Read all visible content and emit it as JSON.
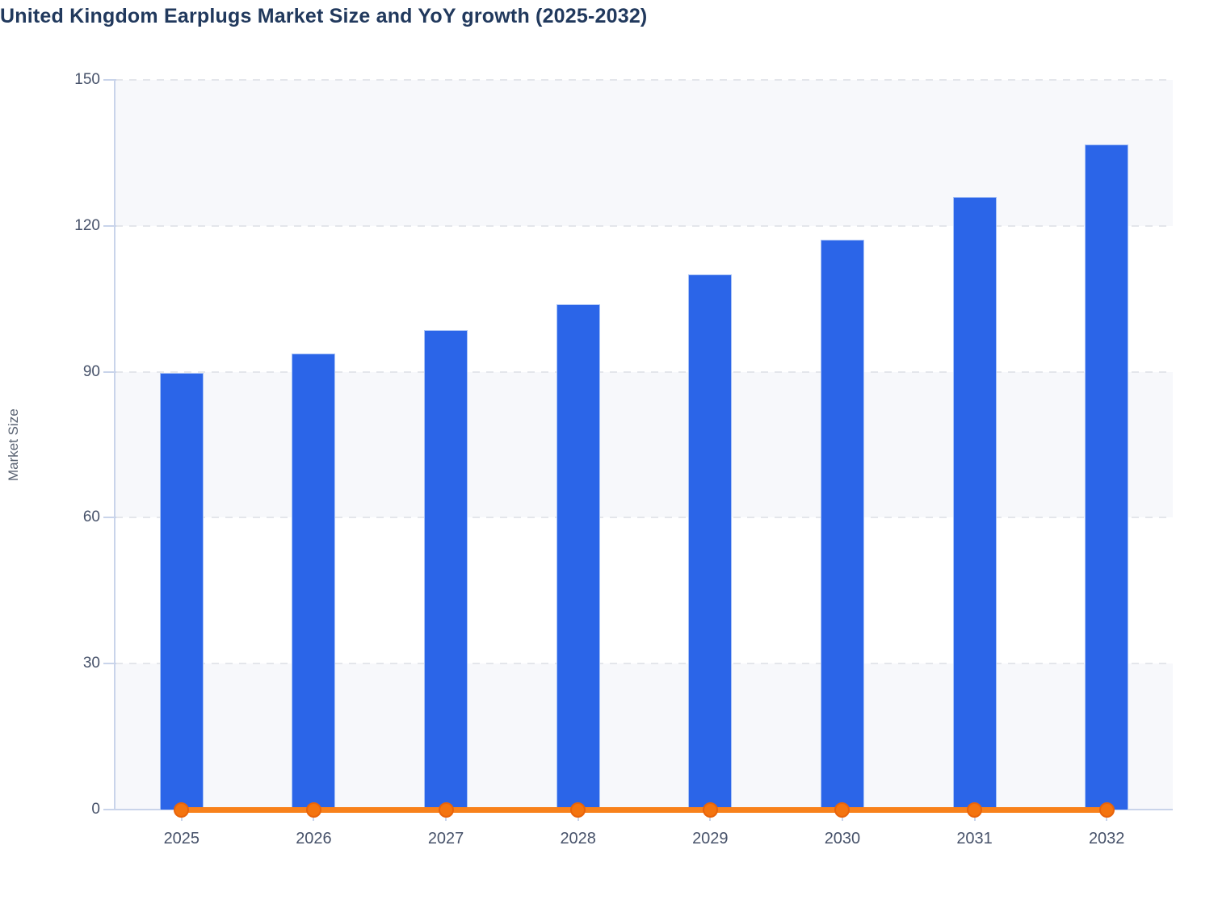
{
  "title": "United Kingdom Earplugs Market Size and YoY growth (2025-2032)",
  "chart_data": {
    "type": "bar",
    "subtype": "bar-plus-line-combo",
    "title": "United Kingdom Earplugs Market Size and YoY growth (2025-2032)",
    "categories": [
      "2025",
      "2026",
      "2027",
      "2028",
      "2029",
      "2030",
      "2031",
      "2032"
    ],
    "series": [
      {
        "name": "Market Size",
        "type": "bar",
        "color": "#2B65E8",
        "values": [
          89.7,
          93.8,
          98.5,
          103.8,
          110.0,
          117.2,
          126.0,
          136.8
        ]
      },
      {
        "name": "YoY growth",
        "type": "line",
        "color": "#F8811B",
        "values": [
          0,
          0,
          0,
          0,
          0,
          0,
          0,
          0
        ]
      }
    ],
    "xlabel": "",
    "ylabel": "Market Size",
    "ylim": [
      0,
      150
    ],
    "yticks": [
      0,
      30,
      60,
      90,
      120,
      150
    ],
    "grid": "horizontal-dashed",
    "legend": "none",
    "plot_bands": "alternating horizontal bands every 30 units"
  },
  "colors": {
    "title_text": "#21395D",
    "axis_tick_text": "#47526A",
    "axis_label_text": "#5A6372",
    "band_light": "#F7F8FB",
    "band_white": "#FFFFFF",
    "gridline": "#E4E6EB",
    "axis_line": "#C9D4EA",
    "bar_fill": "#2B65E8",
    "bar_border": "#A9C3F6",
    "line": "#F8811B",
    "marker_fill": "#F4740F",
    "marker_border": "#E8630A",
    "page_bg": "#FFFFFF"
  }
}
